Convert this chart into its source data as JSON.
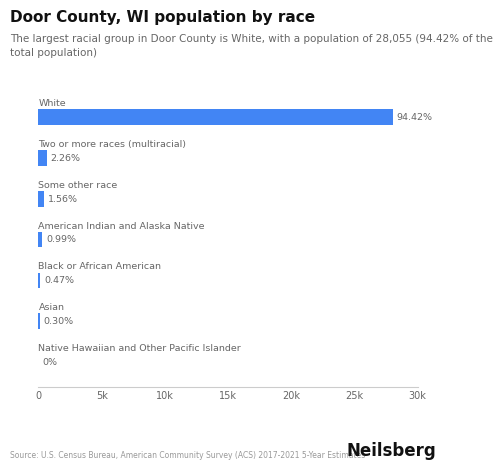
{
  "title": "Door County, WI population by race",
  "subtitle": "The largest racial group in Door County is White, with a population of 28,055 (94.42% of the\ntotal population)",
  "categories": [
    "White",
    "Two or more races (multiracial)",
    "Some other race",
    "American Indian and Alaska Native",
    "Black or African American",
    "Asian",
    "Native Hawaiian and Other Pacific Islander"
  ],
  "values": [
    28055,
    671,
    463,
    294,
    139,
    89,
    0
  ],
  "percentages": [
    "94.42%",
    "2.26%",
    "1.56%",
    "0.99%",
    "0.47%",
    "0.30%",
    "0%"
  ],
  "bar_color": "#4285f4",
  "background_color": "#ffffff",
  "label_color": "#666666",
  "title_color": "#111111",
  "source_text": "Source: U.S. Census Bureau, American Community Survey (ACS) 2017-2021 5-Year Estimates",
  "brand": "Neilsberg",
  "xlim": [
    0,
    30000
  ],
  "xticks": [
    0,
    5000,
    10000,
    15000,
    20000,
    25000,
    30000
  ],
  "xtick_labels": [
    "0",
    "5k",
    "10k",
    "15k",
    "20k",
    "25k",
    "30k"
  ],
  "title_fontsize": 11,
  "subtitle_fontsize": 7.5,
  "category_fontsize": 6.8,
  "value_fontsize": 6.8,
  "xtick_fontsize": 7,
  "source_fontsize": 5.5,
  "brand_fontsize": 12
}
